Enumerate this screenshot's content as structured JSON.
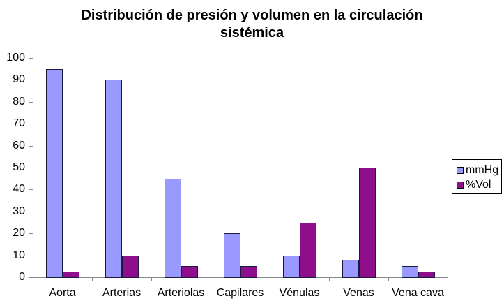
{
  "chart_data": {
    "type": "bar",
    "title": "Distribución de presión y volumen en la circulación sistémica",
    "title_lines": [
      "Distribución de presión y volumen en la circulación",
      "sistémica"
    ],
    "xlabel": "",
    "ylabel": "",
    "ylim": [
      0,
      100
    ],
    "yticks": [
      0,
      10,
      20,
      30,
      40,
      50,
      60,
      70,
      80,
      90,
      100
    ],
    "grid": false,
    "legend_position": "right",
    "categories": [
      "Aorta",
      "Arterias",
      "Arteriolas",
      "Capilares",
      "Vénulas",
      "Venas",
      "Vena cava"
    ],
    "series": [
      {
        "name": "mmHg",
        "color": "#9999ff",
        "values": [
          95,
          90,
          45,
          20,
          10,
          8,
          5
        ]
      },
      {
        "name": "%Vol",
        "color": "#8e0e8c",
        "values": [
          2.5,
          10,
          5,
          5,
          25,
          50,
          2.5
        ]
      }
    ]
  }
}
